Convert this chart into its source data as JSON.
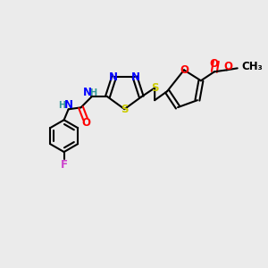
{
  "background_color": "#ebebeb",
  "atom_colors": {
    "C": "#000000",
    "N": "#0000ff",
    "O": "#ff0000",
    "S": "#cccc00",
    "F": "#cc44cc",
    "H": "#339999"
  },
  "bond_color": "#000000",
  "lw": 1.5,
  "dlw": 1.0
}
